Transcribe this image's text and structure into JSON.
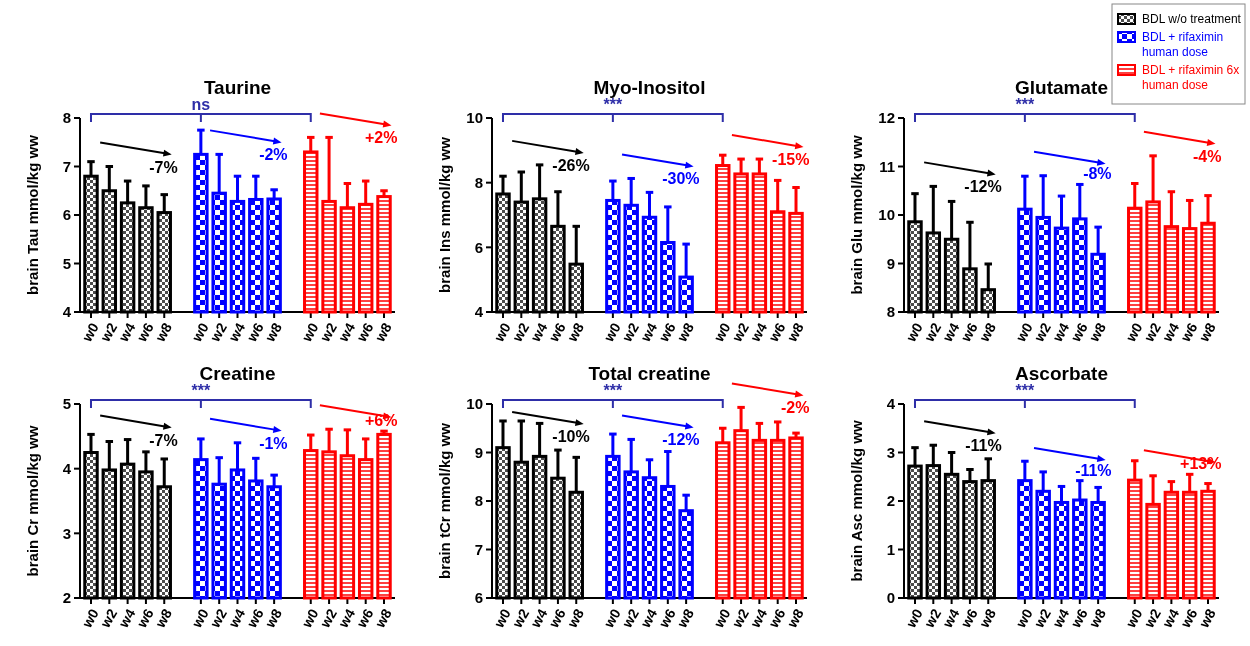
{
  "chart_data": [
    {
      "type": "bar",
      "title": "Taurine",
      "ylabel": "brain Tau mmol/kg ww",
      "categories": [
        "w0",
        "w2",
        "w4",
        "w6",
        "w8",
        "w0",
        "w2",
        "w4",
        "w6",
        "w8",
        "w0",
        "w2",
        "w4",
        "w6",
        "w8"
      ],
      "ylim": [
        4,
        8
      ],
      "yticks": [
        4,
        5,
        6,
        7,
        8
      ],
      "annotations": [
        "ns",
        "-7%",
        "-2%",
        "+2%"
      ],
      "series": [
        {
          "color": "#000000",
          "values": [
            6.8,
            6.5,
            6.25,
            6.15,
            6.05,
            null,
            null,
            null,
            null,
            null,
            null,
            null,
            null,
            null,
            null
          ],
          "errors": [
            [
              6.8,
              7.1
            ],
            [
              6.5,
              7.0
            ],
            [
              6.25,
              6.7
            ],
            [
              6.15,
              6.6
            ],
            [
              6.05,
              6.42
            ],
            null,
            null,
            null,
            null,
            null,
            null,
            null,
            null,
            null,
            null
          ]
        },
        {
          "color": "#0000ff",
          "values": [
            null,
            null,
            null,
            null,
            null,
            7.25,
            6.45,
            6.28,
            6.32,
            6.33,
            null,
            null,
            null,
            null,
            null
          ],
          "errors": [
            null,
            null,
            null,
            null,
            null,
            [
              7.25,
              7.75
            ],
            [
              6.45,
              7.25
            ],
            [
              6.28,
              6.8
            ],
            [
              6.32,
              6.8
            ],
            [
              6.33,
              6.52
            ],
            null,
            null,
            null,
            null,
            null
          ]
        },
        {
          "color": "#ff0000",
          "values": [
            null,
            null,
            null,
            null,
            null,
            null,
            null,
            null,
            null,
            null,
            7.3,
            6.28,
            6.15,
            6.22,
            6.38
          ],
          "errors": [
            null,
            null,
            null,
            null,
            null,
            null,
            null,
            null,
            null,
            null,
            [
              7.3,
              7.6
            ],
            [
              6.28,
              7.6
            ],
            [
              6.15,
              6.65
            ],
            [
              6.22,
              6.7
            ],
            [
              6.38,
              6.5
            ]
          ]
        }
      ]
    },
    {
      "type": "bar",
      "title": "Myo-Inositol",
      "ylabel": "brain Ins mmol/kg ww",
      "categories": [
        "w0",
        "w2",
        "w4",
        "w6",
        "w8",
        "w0",
        "w2",
        "w4",
        "w6",
        "w8",
        "w0",
        "w2",
        "w4",
        "w6",
        "w8"
      ],
      "ylim": [
        4,
        10
      ],
      "yticks": [
        4,
        6,
        8,
        10
      ],
      "annotations": [
        "***",
        "-26%",
        "-30%",
        "-15%"
      ],
      "series": [
        {
          "color": "#000000",
          "values": [
            7.65,
            7.4,
            7.5,
            6.65,
            5.48,
            null,
            null,
            null,
            null,
            null,
            null,
            null,
            null,
            null,
            null
          ],
          "errors": [
            [
              7.65,
              8.2
            ],
            [
              7.4,
              8.33
            ],
            [
              7.5,
              8.55
            ],
            [
              6.65,
              7.72
            ],
            [
              5.48,
              6.65
            ],
            null,
            null,
            null,
            null,
            null,
            null,
            null,
            null,
            null,
            null
          ]
        },
        {
          "color": "#0000ff",
          "values": [
            null,
            null,
            null,
            null,
            null,
            7.45,
            7.3,
            6.93,
            6.15,
            5.08,
            null,
            null,
            null,
            null,
            null
          ],
          "errors": [
            null,
            null,
            null,
            null,
            null,
            [
              7.45,
              8.05
            ],
            [
              7.3,
              8.13
            ],
            [
              6.93,
              7.7
            ],
            [
              6.15,
              7.25
            ],
            [
              5.08,
              6.1
            ],
            null,
            null,
            null,
            null,
            null
          ]
        },
        {
          "color": "#ff0000",
          "values": [
            null,
            null,
            null,
            null,
            null,
            null,
            null,
            null,
            null,
            null,
            8.53,
            8.27,
            8.27,
            7.1,
            7.05
          ],
          "errors": [
            null,
            null,
            null,
            null,
            null,
            null,
            null,
            null,
            null,
            null,
            [
              8.53,
              8.85
            ],
            [
              8.27,
              8.73
            ],
            [
              8.27,
              8.73
            ],
            [
              7.1,
              8.07
            ],
            [
              7.05,
              7.85
            ]
          ]
        }
      ]
    },
    {
      "type": "bar",
      "title": "Glutamate",
      "ylabel": "brain Glu mmol/kg ww",
      "categories": [
        "w0",
        "w2",
        "w4",
        "w6",
        "w8",
        "w0",
        "w2",
        "w4",
        "w6",
        "w8",
        "w0",
        "w2",
        "w4",
        "w6",
        "w8"
      ],
      "ylim": [
        8,
        12
      ],
      "yticks": [
        8,
        9,
        10,
        11,
        12
      ],
      "annotations": [
        "***",
        "-12%",
        "-8%",
        "-4%"
      ],
      "legend": "top right",
      "series": [
        {
          "name": "BDL w/o treatment",
          "color": "#000000",
          "values": [
            9.86,
            9.63,
            9.5,
            8.89,
            8.46,
            null,
            null,
            null,
            null,
            null,
            null,
            null,
            null,
            null,
            null
          ],
          "errors": [
            [
              9.86,
              10.44
            ],
            [
              9.63,
              10.59
            ],
            [
              9.5,
              10.28
            ],
            [
              8.89,
              9.85
            ],
            [
              8.46,
              8.99
            ],
            null,
            null,
            null,
            null,
            null,
            null,
            null,
            null,
            null,
            null
          ]
        },
        {
          "name": "BDL + rifaximin human dose",
          "color": "#0000ff",
          "values": [
            null,
            null,
            null,
            null,
            null,
            10.12,
            9.95,
            9.73,
            9.92,
            9.19,
            null,
            null,
            null,
            null,
            null
          ],
          "errors": [
            null,
            null,
            null,
            null,
            null,
            [
              10.12,
              10.8
            ],
            [
              9.95,
              10.81
            ],
            [
              9.73,
              10.39
            ],
            [
              9.92,
              10.63
            ],
            [
              9.19,
              9.75
            ],
            null,
            null,
            null,
            null,
            null
          ]
        },
        {
          "name": "BDL + rifaximin 6x human dose",
          "color": "#ff0000",
          "values": [
            null,
            null,
            null,
            null,
            null,
            null,
            null,
            null,
            null,
            null,
            10.14,
            10.27,
            9.76,
            9.72,
            9.83
          ],
          "errors": [
            null,
            null,
            null,
            null,
            null,
            null,
            null,
            null,
            null,
            null,
            [
              10.14,
              10.65
            ],
            [
              10.27,
              11.22
            ],
            [
              9.76,
              10.48
            ],
            [
              9.72,
              10.3
            ],
            [
              9.83,
              10.4
            ]
          ]
        }
      ]
    },
    {
      "type": "bar",
      "title": "Creatine",
      "ylabel": "brain Cr mmol/kg ww",
      "categories": [
        "w0",
        "w2",
        "w4",
        "w6",
        "w8",
        "w0",
        "w2",
        "w4",
        "w6",
        "w8",
        "w0",
        "w2",
        "w4",
        "w6",
        "w8"
      ],
      "ylim": [
        2,
        5
      ],
      "yticks": [
        2,
        3,
        4,
        5
      ],
      "annotations": [
        "***",
        "-7%",
        "-1%",
        "+6%"
      ],
      "series": [
        {
          "color": "#000000",
          "values": [
            4.25,
            3.98,
            4.07,
            3.95,
            3.72,
            null,
            null,
            null,
            null,
            null,
            null,
            null,
            null,
            null,
            null
          ],
          "errors": [
            [
              4.25,
              4.53
            ],
            [
              3.98,
              4.42
            ],
            [
              4.07,
              4.45
            ],
            [
              3.95,
              4.26
            ],
            [
              3.72,
              4.15
            ],
            null,
            null,
            null,
            null,
            null,
            null,
            null,
            null,
            null,
            null
          ]
        },
        {
          "color": "#0000ff",
          "values": [
            null,
            null,
            null,
            null,
            null,
            4.14,
            3.76,
            3.98,
            3.81,
            3.72,
            null,
            null,
            null,
            null,
            null
          ],
          "errors": [
            null,
            null,
            null,
            null,
            null,
            [
              4.14,
              4.46
            ],
            [
              3.76,
              4.17
            ],
            [
              3.98,
              4.4
            ],
            [
              3.81,
              4.16
            ],
            [
              3.72,
              3.9
            ],
            null,
            null,
            null,
            null,
            null
          ]
        },
        {
          "color": "#ff0000",
          "values": [
            null,
            null,
            null,
            null,
            null,
            null,
            null,
            null,
            null,
            null,
            4.28,
            4.26,
            4.2,
            4.14,
            4.53
          ],
          "errors": [
            null,
            null,
            null,
            null,
            null,
            null,
            null,
            null,
            null,
            null,
            [
              4.28,
              4.52
            ],
            [
              4.26,
              4.61
            ],
            [
              4.2,
              4.6
            ],
            [
              4.14,
              4.46
            ],
            [
              4.53,
              4.58
            ]
          ]
        }
      ]
    },
    {
      "type": "bar",
      "title": "Total creatine",
      "ylabel": "brain tCr mmol/kg ww",
      "categories": [
        "w0",
        "w2",
        "w4",
        "w6",
        "w8",
        "w0",
        "w2",
        "w4",
        "w6",
        "w8",
        "w0",
        "w2",
        "w4",
        "w6",
        "w8"
      ],
      "ylim": [
        6,
        10
      ],
      "yticks": [
        6,
        7,
        8,
        9,
        10
      ],
      "annotations": [
        "***",
        "-10%",
        "-12%",
        "-2%"
      ],
      "series": [
        {
          "color": "#000000",
          "values": [
            9.1,
            8.8,
            8.92,
            8.47,
            8.18,
            null,
            null,
            null,
            null,
            null,
            null,
            null,
            null,
            null,
            null
          ],
          "errors": [
            [
              9.1,
              9.65
            ],
            [
              8.8,
              9.65
            ],
            [
              8.92,
              9.6
            ],
            [
              8.47,
              9.05
            ],
            [
              8.18,
              8.9
            ],
            null,
            null,
            null,
            null,
            null,
            null,
            null,
            null,
            null,
            null
          ]
        },
        {
          "color": "#0000ff",
          "values": [
            null,
            null,
            null,
            null,
            null,
            8.92,
            8.6,
            8.48,
            8.3,
            7.8,
            null,
            null,
            null,
            null,
            null
          ],
          "errors": [
            null,
            null,
            null,
            null,
            null,
            [
              8.92,
              9.38
            ],
            [
              8.6,
              9.27
            ],
            [
              8.48,
              8.85
            ],
            [
              8.3,
              9.02
            ],
            [
              7.8,
              8.12
            ],
            null,
            null,
            null,
            null,
            null
          ]
        },
        {
          "color": "#ff0000",
          "values": [
            null,
            null,
            null,
            null,
            null,
            null,
            null,
            null,
            null,
            null,
            9.2,
            9.45,
            9.25,
            9.25,
            9.3
          ],
          "errors": [
            null,
            null,
            null,
            null,
            null,
            null,
            null,
            null,
            null,
            null,
            [
              9.2,
              9.5
            ],
            [
              9.45,
              9.93
            ],
            [
              9.25,
              9.6
            ],
            [
              9.25,
              9.63
            ],
            [
              9.3,
              9.4
            ]
          ]
        }
      ]
    },
    {
      "type": "bar",
      "title": "Ascorbate",
      "ylabel": "brain Asc mmol/kg ww",
      "categories": [
        "w0",
        "w2",
        "w4",
        "w6",
        "w8",
        "w0",
        "w2",
        "w4",
        "w6",
        "w8",
        "w0",
        "w2",
        "w4",
        "w6",
        "w8"
      ],
      "ylim": [
        0,
        4
      ],
      "yticks": [
        0,
        1,
        2,
        3,
        4
      ],
      "annotations": [
        "***",
        "-11%",
        "-11%",
        "+13%"
      ],
      "series": [
        {
          "color": "#000000",
          "values": [
            2.72,
            2.73,
            2.55,
            2.4,
            2.42,
            null,
            null,
            null,
            null,
            null,
            null,
            null,
            null,
            null,
            null
          ],
          "errors": [
            [
              2.72,
              3.1
            ],
            [
              2.73,
              3.15
            ],
            [
              2.55,
              3.0
            ],
            [
              2.4,
              2.65
            ],
            [
              2.42,
              2.87
            ],
            null,
            null,
            null,
            null,
            null,
            null,
            null,
            null,
            null,
            null
          ]
        },
        {
          "color": "#0000ff",
          "values": [
            null,
            null,
            null,
            null,
            null,
            2.42,
            2.2,
            1.97,
            2.02,
            1.97,
            null,
            null,
            null,
            null,
            null
          ],
          "errors": [
            null,
            null,
            null,
            null,
            null,
            [
              2.42,
              2.82
            ],
            [
              2.2,
              2.6
            ],
            [
              1.97,
              2.3
            ],
            [
              2.02,
              2.42
            ],
            [
              1.97,
              2.28
            ],
            null,
            null,
            null,
            null,
            null
          ]
        },
        {
          "color": "#ff0000",
          "values": [
            null,
            null,
            null,
            null,
            null,
            null,
            null,
            null,
            null,
            null,
            2.43,
            1.93,
            2.18,
            2.18,
            2.2
          ],
          "errors": [
            null,
            null,
            null,
            null,
            null,
            null,
            null,
            null,
            null,
            null,
            [
              2.43,
              2.83
            ],
            [
              1.93,
              2.52
            ],
            [
              2.18,
              2.4
            ],
            [
              2.18,
              2.55
            ],
            [
              2.2,
              2.36
            ]
          ]
        }
      ]
    }
  ]
}
